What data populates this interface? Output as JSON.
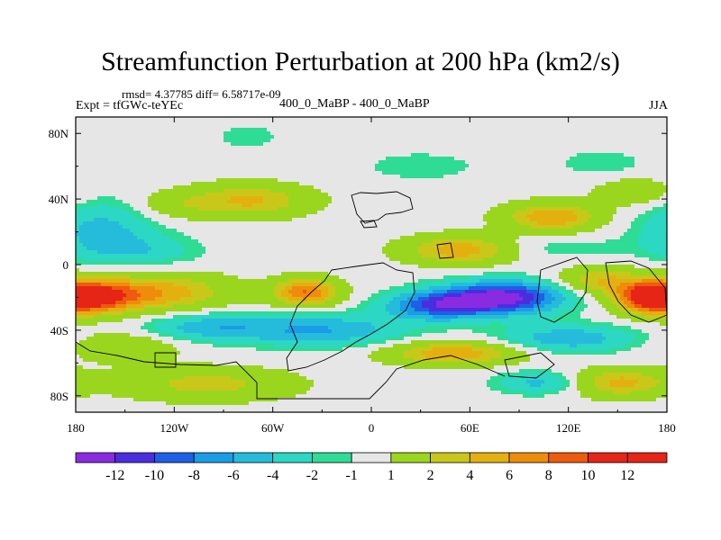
{
  "header": {
    "rmsd_text": "rmsd= 4.37785 diff= 6.58717e-09",
    "expt_text": "Expt = tfGWc-teYEc",
    "comparison_text": "400_0_MaBP - 400_0_MaBP",
    "season": "JJA"
  },
  "chart_data": {
    "type": "heatmap",
    "title": "Streamfunction Perturbation at 200 hPa (km2/s)",
    "xlabel": "",
    "ylabel": "",
    "xlim": [
      -180,
      180
    ],
    "ylim": [
      -90,
      90
    ],
    "x_ticks": [
      {
        "value": -180,
        "label": "180"
      },
      {
        "value": -120,
        "label": "120W"
      },
      {
        "value": -60,
        "label": "60W"
      },
      {
        "value": 0,
        "label": "0"
      },
      {
        "value": 60,
        "label": "60E"
      },
      {
        "value": 120,
        "label": "120E"
      },
      {
        "value": 180,
        "label": "180"
      }
    ],
    "y_ticks": [
      {
        "value": 80,
        "label": "80N"
      },
      {
        "value": 40,
        "label": "40N"
      },
      {
        "value": 0,
        "label": "0"
      },
      {
        "value": -40,
        "label": "40S"
      },
      {
        "value": -80,
        "label": "80S"
      }
    ],
    "contour_levels": [
      {
        "label": "-12",
        "color": "#8a2be2"
      },
      {
        "label": "-10",
        "color": "#4b2de0"
      },
      {
        "label": "-8",
        "color": "#1f5fe6"
      },
      {
        "label": "-6",
        "color": "#1a9ce6"
      },
      {
        "label": "-4",
        "color": "#25bcdc"
      },
      {
        "label": "-2",
        "color": "#2cd7c4"
      },
      {
        "label": "-1",
        "color": "#2fdc96"
      },
      {
        "label": "1",
        "color": "#e6e6e6"
      },
      {
        "label": "2",
        "color": "#9bd61f"
      },
      {
        "label": "4",
        "color": "#c9c81a"
      },
      {
        "label": "6",
        "color": "#e4b010"
      },
      {
        "label": "8",
        "color": "#f08c0c"
      },
      {
        "label": "10",
        "color": "#ee5a0e"
      },
      {
        "label": "12",
        "color": "#e62516"
      }
    ],
    "field_anomalies": [
      {
        "lon": -170,
        "lat": -20,
        "value": 12.0,
        "sx": 18,
        "sy": 7
      },
      {
        "lon": -130,
        "lat": -17,
        "value": 7.5,
        "sx": 30,
        "sy": 8
      },
      {
        "lon": -40,
        "lat": -17,
        "value": 10.0,
        "sx": 14,
        "sy": 6
      },
      {
        "lon": -75,
        "lat": 39,
        "value": 6.5,
        "sx": 26,
        "sy": 7
      },
      {
        "lon": -120,
        "lat": 36,
        "value": 2.5,
        "sx": 16,
        "sy": 6
      },
      {
        "lon": 55,
        "lat": 9,
        "value": 8.0,
        "sx": 24,
        "sy": 6
      },
      {
        "lon": 110,
        "lat": 29,
        "value": 8.0,
        "sx": 20,
        "sy": 6
      },
      {
        "lon": 160,
        "lat": 44,
        "value": 3.5,
        "sx": 16,
        "sy": 6
      },
      {
        "lon": 168,
        "lat": -20,
        "value": 11.0,
        "sx": 14,
        "sy": 7
      },
      {
        "lon": 140,
        "lat": -10,
        "value": 6.0,
        "sx": 18,
        "sy": 6
      },
      {
        "lon": 50,
        "lat": -54,
        "value": 8.0,
        "sx": 28,
        "sy": 5
      },
      {
        "lon": 150,
        "lat": -72,
        "value": 7.0,
        "sx": 22,
        "sy": 6
      },
      {
        "lon": -100,
        "lat": -73,
        "value": 5.0,
        "sx": 36,
        "sy": 7
      },
      {
        "lon": -150,
        "lat": -50,
        "value": 4.0,
        "sx": 22,
        "sy": 6
      },
      {
        "lon": 80,
        "lat": -20,
        "value": -13.0,
        "sx": 26,
        "sy": 7
      },
      {
        "lon": 40,
        "lat": -25,
        "value": -9.0,
        "sx": 22,
        "sy": 6
      },
      {
        "lon": -30,
        "lat": -40,
        "value": -6.0,
        "sx": 36,
        "sy": 7
      },
      {
        "lon": -100,
        "lat": -38,
        "value": -5.0,
        "sx": 28,
        "sy": 6
      },
      {
        "lon": 120,
        "lat": -45,
        "value": -5.5,
        "sx": 30,
        "sy": 6
      },
      {
        "lon": 105,
        "lat": -72,
        "value": -5.0,
        "sx": 20,
        "sy": 5
      },
      {
        "lon": -165,
        "lat": 22,
        "value": -4.5,
        "sx": 24,
        "sy": 12
      },
      {
        "lon": -140,
        "lat": 8,
        "value": -3.0,
        "sx": 26,
        "sy": 7
      },
      {
        "lon": 105,
        "lat": 10,
        "value": -2.0,
        "sx": 34,
        "sy": 5
      },
      {
        "lon": -75,
        "lat": 78,
        "value": -1.6,
        "sx": 16,
        "sy": 6
      },
      {
        "lon": 30,
        "lat": 60,
        "value": -2.0,
        "sx": 24,
        "sy": 6
      },
      {
        "lon": 140,
        "lat": 62,
        "value": -1.8,
        "sx": 20,
        "sy": 6
      }
    ]
  }
}
